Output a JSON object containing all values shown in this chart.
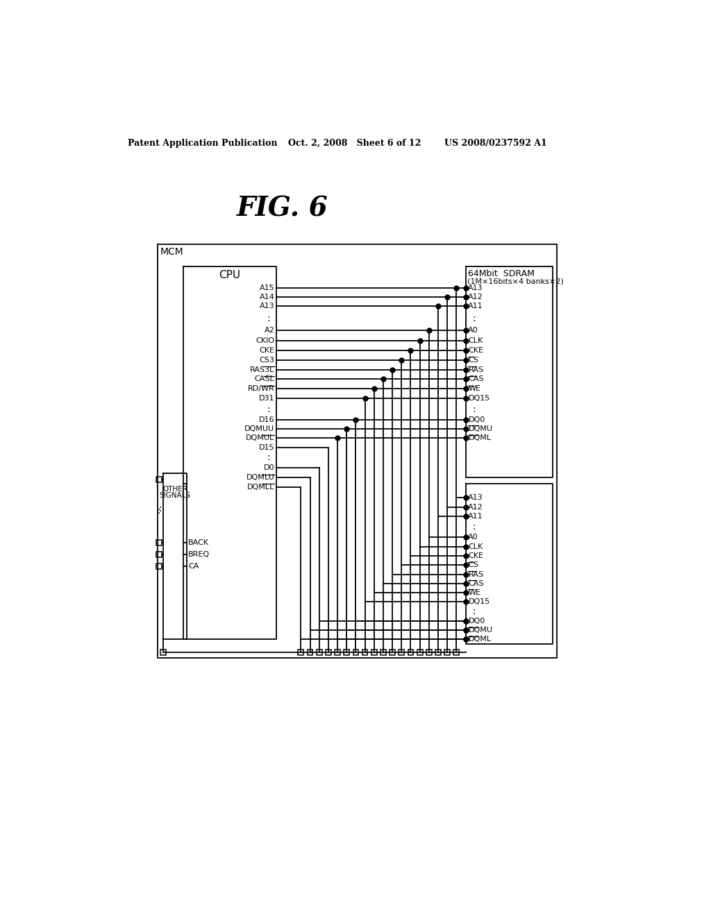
{
  "fig_title": "FIG. 6",
  "header_left": "Patent Application Publication",
  "header_mid": "Oct. 2, 2008   Sheet 6 of 12",
  "header_right": "US 2008/0237592 A1",
  "bg_color": "#ffffff",
  "text_color": "#000000",
  "mcm_label": "MCM",
  "cpu_label": "CPU",
  "sdram_label1": "64Mbit  SDRAM",
  "sdram_label2": "(1M×16bits×4 banks×2)"
}
